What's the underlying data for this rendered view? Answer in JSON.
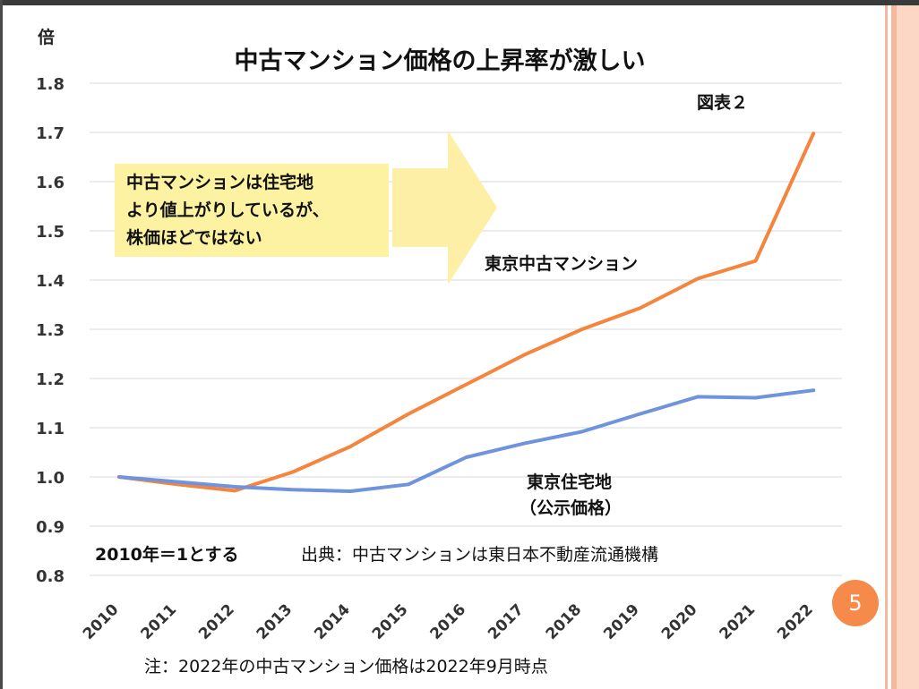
{
  "chart_data": {
    "type": "line",
    "title": "中古マンション価格の上昇率が激しい",
    "figure_label": "図表２",
    "ylabel": "倍",
    "ylim": [
      0.8,
      1.8
    ],
    "yticks": [
      "1.8",
      "1.7",
      "1.6",
      "1.5",
      "1.4",
      "1.3",
      "1.2",
      "1.1",
      "1.0",
      "0.9",
      "0.8"
    ],
    "categories": [
      "2010",
      "2011",
      "2012",
      "2013",
      "2014",
      "2015",
      "2016",
      "2017",
      "2018",
      "2019",
      "2020",
      "2021",
      "2022"
    ],
    "grid": true,
    "series": [
      {
        "name": "東京中古マンション",
        "color": "#f5843c",
        "values": [
          1.0,
          0.985,
          0.972,
          1.01,
          1.062,
          1.128,
          1.188,
          1.248,
          1.3,
          1.343,
          1.403,
          1.439,
          1.698
        ]
      },
      {
        "name": "東京住宅地（公示価格）",
        "label_line1": "東京住宅地",
        "label_line2": "（公示価格）",
        "color": "#6f93dc",
        "values": [
          1.0,
          0.99,
          0.98,
          0.974,
          0.971,
          0.985,
          1.04,
          1.068,
          1.092,
          1.128,
          1.163,
          1.161,
          1.176
        ]
      }
    ],
    "callout": {
      "line1": "中古マンションは住宅地",
      "line2": "より値上がりしているが、",
      "line3": "株価ほどではない",
      "box_color": "#fdf2a2",
      "arrow_color": "#fdf0a6"
    },
    "base_note": "2010年＝1とする",
    "source": "出典：中古マンションは東日本不動産流通機構",
    "footnote": "注：2022年の中古マンション価格は2022年9月時点"
  },
  "page_number": "5",
  "colors": {
    "accent": "#f58a4a",
    "grid": "#d9d9d9",
    "border_light": "#fcd7c5",
    "border_dark": "#f7b79a"
  }
}
